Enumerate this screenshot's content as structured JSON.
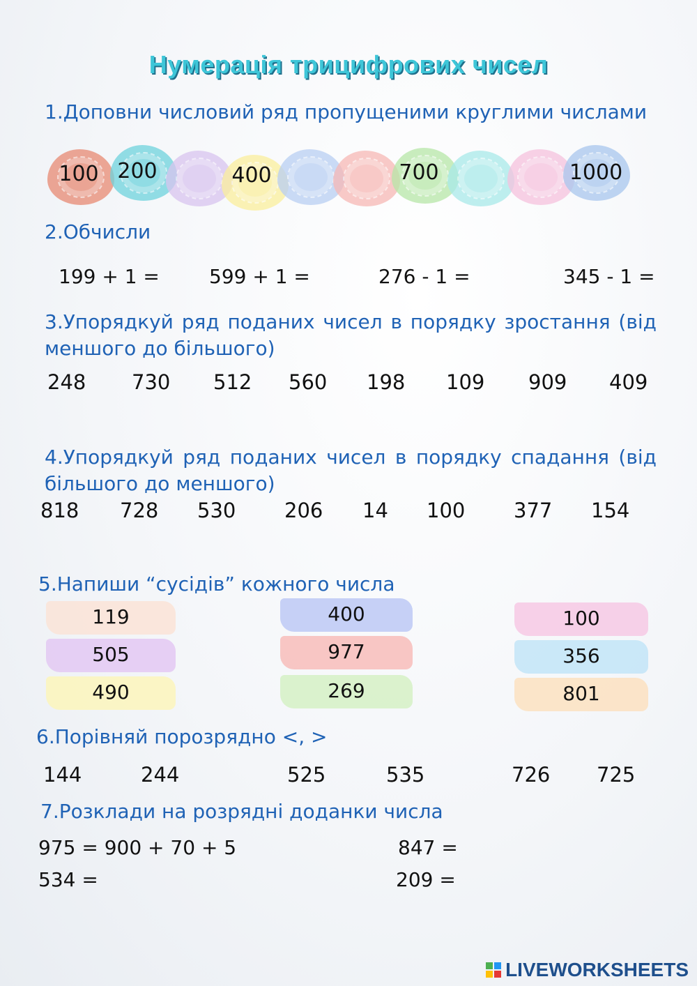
{
  "title": "Нумерація трицифрових чисел",
  "task1": {
    "heading": "1.Доповни числовий ряд пропущеними круглими числами",
    "prints": [
      {
        "label": "100",
        "color": "#e88a73"
      },
      {
        "label": "200",
        "color": "#6fd3dd"
      },
      {
        "label": "",
        "color": "#d9c4ef"
      },
      {
        "label": "400",
        "color": "#fbef9d"
      },
      {
        "label": "",
        "color": "#b9cff3"
      },
      {
        "label": "",
        "color": "#f7b8b5"
      },
      {
        "label": "700",
        "color": "#b7e7a8"
      },
      {
        "label": "",
        "color": "#a9eaea"
      },
      {
        "label": "",
        "color": "#f6c2de"
      },
      {
        "label": "1000",
        "color": "#a9c7ee"
      }
    ]
  },
  "task2": {
    "heading": "2.Обчисли",
    "items": [
      "199 + 1 =",
      "599 + 1 =",
      "276 - 1 =",
      "345 - 1 ="
    ]
  },
  "task3": {
    "heading": "3.Упорядкуй ряд поданих чисел в порядку зростання (від меншого до більшого)",
    "numbers": [
      "248",
      "730",
      "512",
      "560",
      "198",
      "109",
      "909",
      "409"
    ]
  },
  "task4": {
    "heading": "4.Упорядкуй ряд поданих чисел в порядку спадання (від більшого до меншого)",
    "numbers": [
      "818",
      "728",
      "530",
      "206",
      "14",
      "100",
      "377",
      "154"
    ]
  },
  "task5": {
    "heading": "5.Напиши  “сусідів” кожного числа",
    "columns": [
      [
        {
          "label": "119",
          "color": "#fbe2d4"
        },
        {
          "label": "505",
          "color": "#e2c6f2"
        },
        {
          "label": "490",
          "color": "#fdf5b8"
        }
      ],
      [
        {
          "label": "400",
          "color": "#b9c6f5"
        },
        {
          "label": "977",
          "color": "#f8b9b6"
        },
        {
          "label": "269",
          "color": "#d3f0c2"
        }
      ],
      [
        {
          "label": "100",
          "color": "#f6c6e4"
        },
        {
          "label": "356",
          "color": "#bfe3f7"
        },
        {
          "label": "801",
          "color": "#fde0bd"
        }
      ]
    ]
  },
  "task6": {
    "heading": "6.Порівняй порозрядно <, >",
    "numbers": [
      "144",
      "244",
      "525",
      "535",
      "726",
      "725"
    ]
  },
  "task7": {
    "heading": "7.Розклади на розрядні доданки числа",
    "items": [
      "975 = 900 + 70 + 5",
      "847 =",
      "534 =",
      "209 ="
    ]
  },
  "footer": {
    "logo": "LIVEWORKSHEETS"
  }
}
